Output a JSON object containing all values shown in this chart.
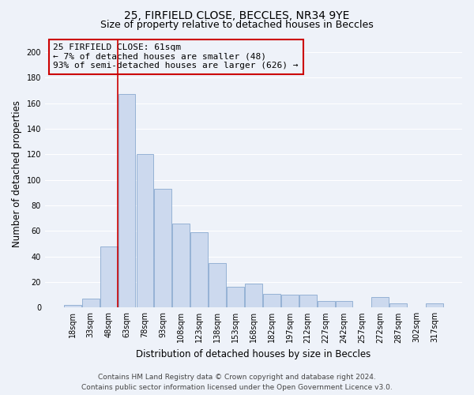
{
  "title_line1": "25, FIRFIELD CLOSE, BECCLES, NR34 9YE",
  "title_line2": "Size of property relative to detached houses in Beccles",
  "xlabel": "Distribution of detached houses by size in Beccles",
  "ylabel": "Number of detached properties",
  "bar_labels": [
    "18sqm",
    "33sqm",
    "48sqm",
    "63sqm",
    "78sqm",
    "93sqm",
    "108sqm",
    "123sqm",
    "138sqm",
    "153sqm",
    "168sqm",
    "182sqm",
    "197sqm",
    "212sqm",
    "227sqm",
    "242sqm",
    "257sqm",
    "272sqm",
    "287sqm",
    "302sqm",
    "317sqm"
  ],
  "bar_heights": [
    2,
    7,
    48,
    167,
    120,
    93,
    66,
    59,
    35,
    16,
    19,
    11,
    10,
    10,
    5,
    5,
    0,
    8,
    3,
    0,
    3
  ],
  "bar_color": "#ccd9ee",
  "bar_edge_color": "#8aaad0",
  "highlight_bar_index": 3,
  "highlight_line_color": "#cc0000",
  "annotation_line1": "25 FIRFIELD CLOSE: 61sqm",
  "annotation_line2": "← 7% of detached houses are smaller (48)",
  "annotation_line3": "93% of semi-detached houses are larger (626) →",
  "annotation_box_edge_color": "#cc0000",
  "ylim": [
    0,
    210
  ],
  "yticks": [
    0,
    20,
    40,
    60,
    80,
    100,
    120,
    140,
    160,
    180,
    200
  ],
  "footer_line1": "Contains HM Land Registry data © Crown copyright and database right 2024.",
  "footer_line2": "Contains public sector information licensed under the Open Government Licence v3.0.",
  "background_color": "#eef2f9",
  "grid_color": "#ffffff",
  "title_fontsize": 10,
  "subtitle_fontsize": 9,
  "axis_label_fontsize": 8.5,
  "tick_fontsize": 7,
  "annotation_fontsize": 8,
  "footer_fontsize": 6.5
}
